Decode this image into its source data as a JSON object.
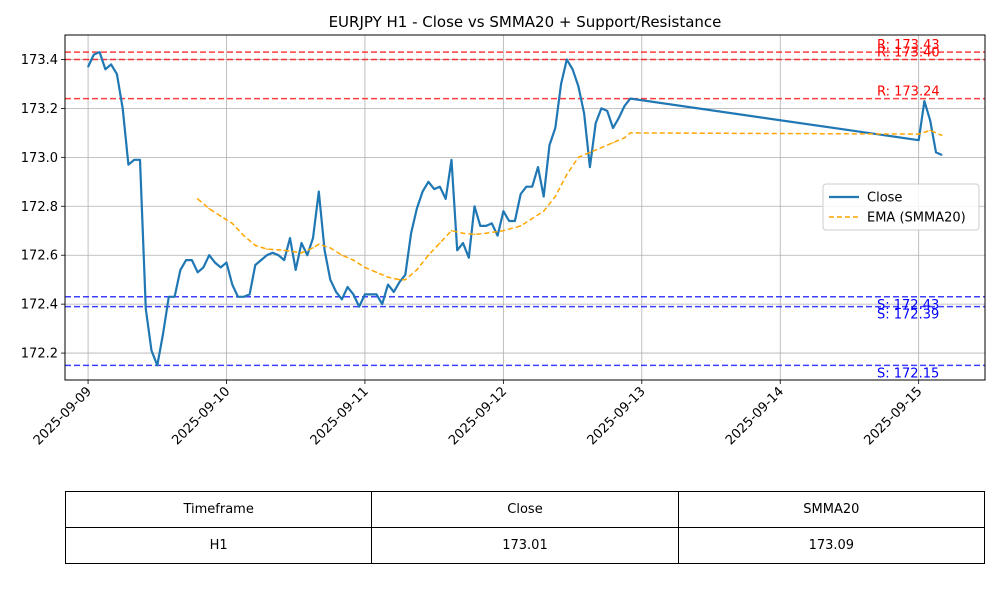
{
  "chart_data": {
    "type": "line",
    "title": "EURJPY H1 - Close vs SMMA20 + Support/Resistance",
    "xlabel": "",
    "ylabel": "",
    "x_ticks": [
      "2025-09-09",
      "2025-09-10",
      "2025-09-11",
      "2025-09-12",
      "2025-09-13",
      "2025-09-14",
      "2025-09-15"
    ],
    "y_ticks": [
      "172.2",
      "172.4",
      "172.6",
      "172.8",
      "173.0",
      "173.2",
      "173.4"
    ],
    "xlim": [
      "2025-09-08T20:00",
      "2025-09-15T11:30"
    ],
    "ylim": [
      172.09,
      173.5
    ],
    "grid": true,
    "legend_position": "center-right",
    "series": [
      {
        "name": "Close",
        "color": "#1f77b4",
        "style": "solid",
        "points": [
          [
            "2025-09-09T00:00",
            173.37
          ],
          [
            "2025-09-09T01:00",
            173.42
          ],
          [
            "2025-09-09T02:00",
            173.43
          ],
          [
            "2025-09-09T03:00",
            173.36
          ],
          [
            "2025-09-09T04:00",
            173.38
          ],
          [
            "2025-09-09T05:00",
            173.34
          ],
          [
            "2025-09-09T06:00",
            173.2
          ],
          [
            "2025-09-09T07:00",
            172.97
          ],
          [
            "2025-09-09T08:00",
            172.99
          ],
          [
            "2025-09-09T09:00",
            172.99
          ],
          [
            "2025-09-09T10:00",
            172.38
          ],
          [
            "2025-09-09T11:00",
            172.21
          ],
          [
            "2025-09-09T12:00",
            172.15
          ],
          [
            "2025-09-09T13:00",
            172.28
          ],
          [
            "2025-09-09T14:00",
            172.43
          ],
          [
            "2025-09-09T15:00",
            172.43
          ],
          [
            "2025-09-09T16:00",
            172.54
          ],
          [
            "2025-09-09T17:00",
            172.58
          ],
          [
            "2025-09-09T18:00",
            172.58
          ],
          [
            "2025-09-09T19:00",
            172.53
          ],
          [
            "2025-09-09T20:00",
            172.55
          ],
          [
            "2025-09-09T21:00",
            172.6
          ],
          [
            "2025-09-09T22:00",
            172.57
          ],
          [
            "2025-09-09T23:00",
            172.55
          ],
          [
            "2025-09-10T00:00",
            172.57
          ],
          [
            "2025-09-10T01:00",
            172.48
          ],
          [
            "2025-09-10T02:00",
            172.43
          ],
          [
            "2025-09-10T03:00",
            172.43
          ],
          [
            "2025-09-10T04:00",
            172.44
          ],
          [
            "2025-09-10T05:00",
            172.56
          ],
          [
            "2025-09-10T06:00",
            172.58
          ],
          [
            "2025-09-10T07:00",
            172.6
          ],
          [
            "2025-09-10T08:00",
            172.61
          ],
          [
            "2025-09-10T09:00",
            172.6
          ],
          [
            "2025-09-10T10:00",
            172.58
          ],
          [
            "2025-09-10T11:00",
            172.67
          ],
          [
            "2025-09-10T12:00",
            172.54
          ],
          [
            "2025-09-10T13:00",
            172.65
          ],
          [
            "2025-09-10T14:00",
            172.6
          ],
          [
            "2025-09-10T15:00",
            172.67
          ],
          [
            "2025-09-10T16:00",
            172.86
          ],
          [
            "2025-09-10T17:00",
            172.62
          ],
          [
            "2025-09-10T18:00",
            172.5
          ],
          [
            "2025-09-10T19:00",
            172.45
          ],
          [
            "2025-09-10T20:00",
            172.42
          ],
          [
            "2025-09-10T21:00",
            172.47
          ],
          [
            "2025-09-10T22:00",
            172.44
          ],
          [
            "2025-09-10T23:00",
            172.39
          ],
          [
            "2025-09-11T00:00",
            172.44
          ],
          [
            "2025-09-11T01:00",
            172.44
          ],
          [
            "2025-09-11T02:00",
            172.44
          ],
          [
            "2025-09-11T03:00",
            172.4
          ],
          [
            "2025-09-11T04:00",
            172.48
          ],
          [
            "2025-09-11T05:00",
            172.45
          ],
          [
            "2025-09-11T06:00",
            172.49
          ],
          [
            "2025-09-11T07:00",
            172.52
          ],
          [
            "2025-09-11T08:00",
            172.69
          ],
          [
            "2025-09-11T09:00",
            172.79
          ],
          [
            "2025-09-11T10:00",
            172.86
          ],
          [
            "2025-09-11T11:00",
            172.9
          ],
          [
            "2025-09-11T12:00",
            172.87
          ],
          [
            "2025-09-11T13:00",
            172.88
          ],
          [
            "2025-09-11T14:00",
            172.83
          ],
          [
            "2025-09-11T15:00",
            172.99
          ],
          [
            "2025-09-11T16:00",
            172.62
          ],
          [
            "2025-09-11T17:00",
            172.65
          ],
          [
            "2025-09-11T18:00",
            172.59
          ],
          [
            "2025-09-11T19:00",
            172.8
          ],
          [
            "2025-09-11T20:00",
            172.72
          ],
          [
            "2025-09-11T21:00",
            172.72
          ],
          [
            "2025-09-11T22:00",
            172.73
          ],
          [
            "2025-09-11T23:00",
            172.68
          ],
          [
            "2025-09-12T00:00",
            172.78
          ],
          [
            "2025-09-12T01:00",
            172.74
          ],
          [
            "2025-09-12T02:00",
            172.74
          ],
          [
            "2025-09-12T03:00",
            172.85
          ],
          [
            "2025-09-12T04:00",
            172.88
          ],
          [
            "2025-09-12T05:00",
            172.88
          ],
          [
            "2025-09-12T06:00",
            172.96
          ],
          [
            "2025-09-12T07:00",
            172.84
          ],
          [
            "2025-09-12T08:00",
            173.05
          ],
          [
            "2025-09-12T09:00",
            173.12
          ],
          [
            "2025-09-12T10:00",
            173.3
          ],
          [
            "2025-09-12T11:00",
            173.4
          ],
          [
            "2025-09-12T12:00",
            173.36
          ],
          [
            "2025-09-12T13:00",
            173.29
          ],
          [
            "2025-09-12T14:00",
            173.18
          ],
          [
            "2025-09-12T15:00",
            172.96
          ],
          [
            "2025-09-12T16:00",
            173.14
          ],
          [
            "2025-09-12T17:00",
            173.2
          ],
          [
            "2025-09-12T18:00",
            173.19
          ],
          [
            "2025-09-12T19:00",
            173.12
          ],
          [
            "2025-09-12T20:00",
            173.16
          ],
          [
            "2025-09-12T21:00",
            173.21
          ],
          [
            "2025-09-12T22:00",
            173.24
          ],
          [
            "2025-09-15T00:00",
            173.07
          ],
          [
            "2025-09-15T01:00",
            173.23
          ],
          [
            "2025-09-15T02:00",
            173.15
          ],
          [
            "2025-09-15T03:00",
            173.02
          ],
          [
            "2025-09-15T04:00",
            173.01
          ]
        ]
      },
      {
        "name": "EMA (SMMA20)",
        "color": "#ffa500",
        "style": "dashed",
        "points": [
          [
            "2025-09-09T19:00",
            172.83
          ],
          [
            "2025-09-09T21:00",
            172.79
          ],
          [
            "2025-09-09T23:00",
            172.76
          ],
          [
            "2025-09-10T01:00",
            172.73
          ],
          [
            "2025-09-10T03:00",
            172.68
          ],
          [
            "2025-09-10T05:00",
            172.64
          ],
          [
            "2025-09-10T07:00",
            172.625
          ],
          [
            "2025-09-10T10:00",
            172.62
          ],
          [
            "2025-09-10T13:00",
            172.61
          ],
          [
            "2025-09-10T15:00",
            172.63
          ],
          [
            "2025-09-10T16:00",
            172.645
          ],
          [
            "2025-09-10T18:00",
            172.63
          ],
          [
            "2025-09-10T20:00",
            172.6
          ],
          [
            "2025-09-10T22:00",
            172.58
          ],
          [
            "2025-09-11T00:00",
            172.55
          ],
          [
            "2025-09-11T02:00",
            172.53
          ],
          [
            "2025-09-11T04:00",
            172.51
          ],
          [
            "2025-09-11T06:00",
            172.5
          ],
          [
            "2025-09-11T07:00",
            172.5
          ],
          [
            "2025-09-11T09:00",
            172.54
          ],
          [
            "2025-09-11T11:00",
            172.6
          ],
          [
            "2025-09-11T13:00",
            172.65
          ],
          [
            "2025-09-11T15:00",
            172.7
          ],
          [
            "2025-09-11T17:00",
            172.69
          ],
          [
            "2025-09-11T19:00",
            172.685
          ],
          [
            "2025-09-11T21:00",
            172.69
          ],
          [
            "2025-09-12T00:00",
            172.7
          ],
          [
            "2025-09-12T03:00",
            172.72
          ],
          [
            "2025-09-12T05:00",
            172.75
          ],
          [
            "2025-09-12T07:00",
            172.78
          ],
          [
            "2025-09-12T09:00",
            172.84
          ],
          [
            "2025-09-12T11:00",
            172.93
          ],
          [
            "2025-09-12T13:00",
            173.0
          ],
          [
            "2025-09-12T15:00",
            173.02
          ],
          [
            "2025-09-12T17:00",
            173.04
          ],
          [
            "2025-09-12T19:00",
            173.06
          ],
          [
            "2025-09-12T21:00",
            173.08
          ],
          [
            "2025-09-12T22:00",
            173.1
          ],
          [
            "2025-09-15T00:00",
            173.095
          ],
          [
            "2025-09-15T02:00",
            173.11
          ],
          [
            "2025-09-15T04:00",
            173.09
          ]
        ]
      }
    ],
    "resistance": [
      {
        "value": 173.43,
        "label": "R: 173.43"
      },
      {
        "value": 173.4,
        "label": "R: 173.40"
      },
      {
        "value": 173.24,
        "label": "R: 173.24"
      }
    ],
    "support": [
      {
        "value": 172.43,
        "label": "S: 172.43"
      },
      {
        "value": 172.39,
        "label": "S: 172.39"
      },
      {
        "value": 172.15,
        "label": "S: 172.15"
      }
    ],
    "resistance_color": "#ff0000",
    "support_color": "#0000ff"
  },
  "table": {
    "headers": [
      "Timeframe",
      "Close",
      "SMMA20"
    ],
    "row": [
      "H1",
      "173.01",
      "173.09"
    ]
  }
}
